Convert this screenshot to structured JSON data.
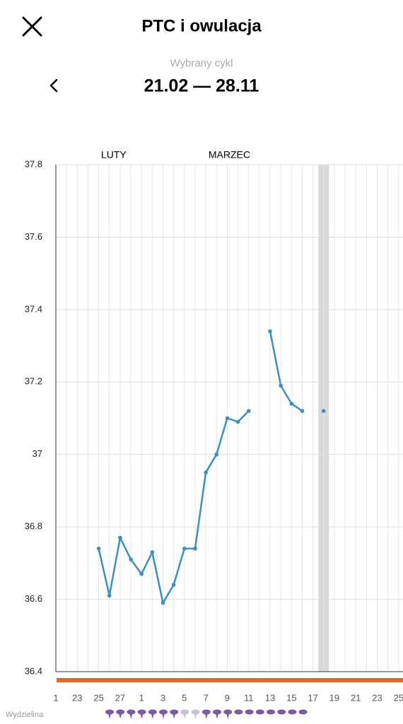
{
  "header": {
    "title": "PTC i owulacja",
    "subtitle": "Wybrany cykl",
    "cycle": "21.02 — 28.11"
  },
  "chart_data": {
    "type": "line",
    "month_labels": [
      "LUTY",
      "MARZEC"
    ],
    "categories": [
      "1",
      null,
      "23",
      null,
      "25",
      null,
      "27",
      null,
      "1",
      null,
      "3",
      null,
      "5",
      null,
      "7",
      null,
      "9",
      null,
      "11",
      null,
      "13",
      null,
      "15",
      null,
      "17",
      null,
      "19",
      null,
      "21",
      null,
      "23",
      null,
      "25"
    ],
    "series": [
      {
        "color": "#3a8fc4",
        "values": [
          null,
          null,
          null,
          null,
          36.74,
          36.61,
          36.77,
          36.71,
          36.67,
          36.73,
          36.59,
          36.64,
          36.74,
          36.74,
          36.95,
          37.0,
          37.1,
          37.09,
          37.12,
          null,
          37.34,
          37.19,
          37.14,
          37.12,
          null,
          37.12,
          null,
          null,
          null,
          null,
          null,
          null,
          null
        ]
      }
    ],
    "ylim": [
      36.4,
      37.8
    ],
    "yticks": [
      36.4,
      36.6,
      36.8,
      37,
      37.2,
      37.4,
      37.6,
      37.8
    ],
    "grid": true
  },
  "footer": {
    "row_label": "Wydzielina"
  }
}
